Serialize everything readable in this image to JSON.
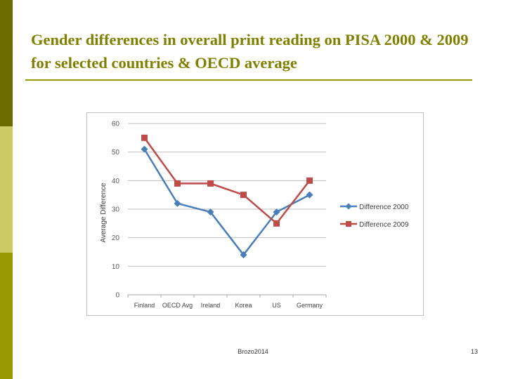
{
  "slide": {
    "title": "Gender differences in overall print reading on PISA 2000 & 2009 for selected countries & OECD average",
    "footer_text": "Brozo2014",
    "page_number": "13",
    "colors": {
      "title": "#7f7f00",
      "accent_dark": "#6b6b00",
      "accent_light": "#cccc66",
      "accent_mid": "#999900"
    }
  },
  "chart_data": {
    "type": "line",
    "title": "",
    "xlabel": "",
    "ylabel": "Average Difference",
    "categories": [
      "Finland",
      "OECD Avg",
      "Ireland",
      "Korea",
      "US",
      "Germany"
    ],
    "ylim": [
      0,
      60
    ],
    "yticks": [
      0,
      10,
      20,
      30,
      40,
      50,
      60
    ],
    "grid": true,
    "legend_position": "right",
    "series": [
      {
        "name": "Difference 2000",
        "values": [
          51,
          32,
          29,
          14,
          29,
          35
        ],
        "color": "#4a7ebb",
        "marker": "diamond"
      },
      {
        "name": "Difference 2009",
        "values": [
          55,
          39,
          39,
          35,
          25,
          40
        ],
        "color": "#be4b48",
        "marker": "square"
      }
    ]
  }
}
